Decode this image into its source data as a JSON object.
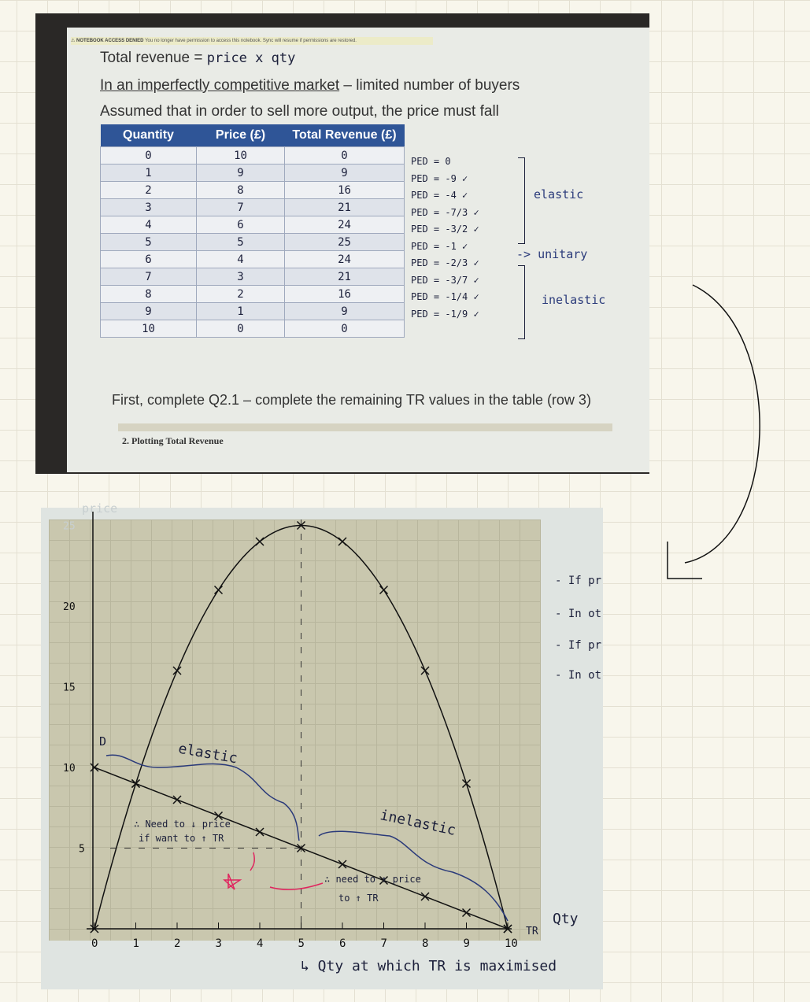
{
  "banner": {
    "title": "NOTEBOOK ACCESS DENIED",
    "message": "You no longer have permission to access this notebook. Sync will resume if permissions are restored."
  },
  "slide": {
    "line1": "Total revenue =",
    "line1_hand": "price x qty",
    "line2_underlined": "In an imperfectly competitive market",
    "line2_rest": " – limited number of buyers",
    "line3": "Assumed that in order to sell more output, the price must fall",
    "instruction": "First, complete Q2.1 – complete the remaining TR values in the table (row 3)",
    "section": "2. Plotting Total Revenue"
  },
  "table": {
    "headers": [
      "Quantity",
      "Price (£)",
      "Total Revenue (£)"
    ],
    "rows": [
      [
        "0",
        "10",
        "0"
      ],
      [
        "1",
        "9",
        "9"
      ],
      [
        "2",
        "8",
        "16"
      ],
      [
        "3",
        "7",
        "21"
      ],
      [
        "4",
        "6",
        "24"
      ],
      [
        "5",
        "5",
        "25"
      ],
      [
        "6",
        "4",
        "24"
      ],
      [
        "7",
        "3",
        "21"
      ],
      [
        "8",
        "2",
        "16"
      ],
      [
        "9",
        "1",
        "9"
      ],
      [
        "10",
        "0",
        "0"
      ]
    ]
  },
  "ped": [
    "PED = 0",
    "PED = -9 ✓",
    "PED = -4 ✓",
    "PED = -7/3 ✓",
    "PED = -3/2 ✓",
    "PED = -1 ✓",
    "PED = -2/3 ✓",
    "PED = -3/7 ✓",
    "PED = -1/4 ✓",
    "PED = -1/9 ✓"
  ],
  "ped_labels": {
    "elastic": "elastic",
    "unitary": "-> unitary",
    "inelastic": "inelastic"
  },
  "graph": {
    "ylabel": "price",
    "y_ticks": [
      "25",
      "20",
      "15",
      "10",
      "5"
    ],
    "x_ticks": [
      "0",
      "1",
      "2",
      "3",
      "4",
      "5",
      "6",
      "7",
      "8",
      "9",
      "10"
    ],
    "xlabel": "Qty",
    "tr_label": "TR",
    "demand_label": "D",
    "elastic": "elastic",
    "inelastic": "inelastic",
    "note_left1": "∴ Need to ↓ price",
    "note_left2": "if want to ↑ TR",
    "note_right1": "∴ need to ↑ price",
    "note_right2": "to ↑ TR",
    "caption": "↳ Qty at which TR is maximised",
    "tr_values": [
      0,
      9,
      16,
      21,
      24,
      25,
      24,
      21,
      16,
      9,
      0
    ],
    "price_values": [
      10,
      9,
      8,
      7,
      6,
      5,
      4,
      3,
      2,
      1,
      0
    ]
  },
  "side_notes": [
    "- If pric",
    "- In othe",
    "- If price",
    "- In othe"
  ],
  "colors": {
    "table_header": "#2f5597",
    "ink_blue": "#2a3a7a",
    "ink_pink": "#e0245e"
  }
}
